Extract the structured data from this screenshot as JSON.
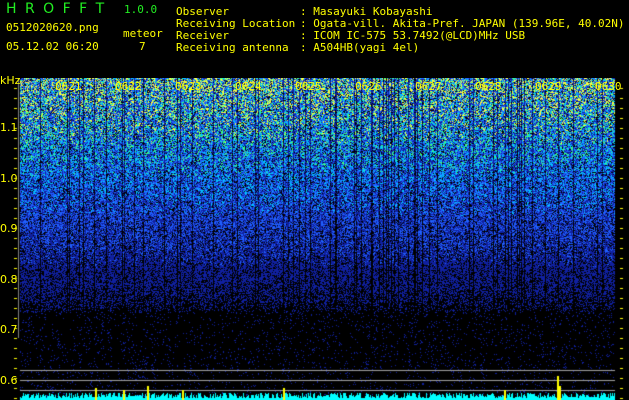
{
  "app": {
    "name": "H R O F F T",
    "version": "1.0.0"
  },
  "file": {
    "name": "0512020620.png",
    "datetime": "05.12.02 06:20"
  },
  "meteor": {
    "label": "meteor",
    "count": "7"
  },
  "info": [
    {
      "label": "Observer",
      "value": ": Masayuki Kobayashi"
    },
    {
      "label": "Receiving Location",
      "value": ": Ogata-vill. Akita-Pref. JAPAN (139.96E, 40.02N)"
    },
    {
      "label": "Receiver",
      "value": ": ICOM IC-575 53.7492(@LCD)MHz USB"
    },
    {
      "label": "Receiving antenna",
      "value": ": A504HB(yagi 4el)"
    }
  ],
  "spectrogram": {
    "y_unit": "kHz",
    "y_ticks": [
      "1.1",
      "1.0",
      "0.9",
      "0.8",
      "0.7",
      "0.6"
    ],
    "y_values": [
      1.1,
      1.0,
      0.9,
      0.8,
      0.7,
      0.6
    ],
    "x_ticks": [
      "0621",
      "0622",
      "0623",
      "0624",
      "0625",
      "0626",
      "0627",
      "0628",
      "0629",
      "0630"
    ],
    "colors": {
      "text": "#ffff00",
      "title": "#22ee22",
      "histogram": "#00ffff",
      "meteor_bar": "#ffff00",
      "reference_line": "#a0a0a0"
    }
  }
}
